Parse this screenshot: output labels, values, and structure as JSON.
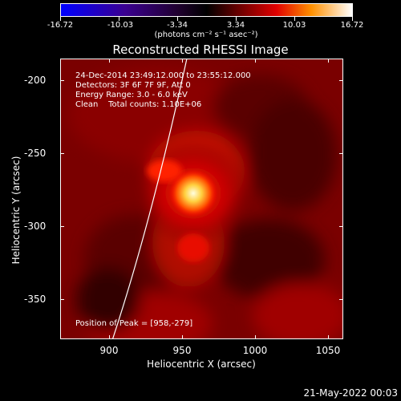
{
  "colorbar": {
    "tick_labels": [
      "-16.72",
      "-10.03",
      "-3.34",
      "3.34",
      "10.03",
      "16.72"
    ],
    "unit": "(photons cm⁻² s⁻¹ asec⁻²)"
  },
  "title": "Reconstructed RHESSI Image",
  "axes": {
    "xlabel": "Heliocentric X (arcsec)",
    "ylabel": "Heliocentric Y (arcsec)",
    "x_ticks": [
      "900",
      "950",
      "1000",
      "1050"
    ],
    "y_ticks": [
      "-200",
      "-250",
      "-300",
      "-350"
    ]
  },
  "annotations": {
    "time_range": "24-Dec-2014 23:49:12.000 to 23:55:12.000",
    "detectors": "Detectors: 3F 6F 7F 9F, Att 0",
    "energy": "Energy Range: 3.0 - 6.0 keV",
    "clean": "Clean    Total counts: 1.10E+06",
    "peak": "Position of Peak = [958,-279]"
  },
  "datestamp": "21-May-2022 00:03"
}
